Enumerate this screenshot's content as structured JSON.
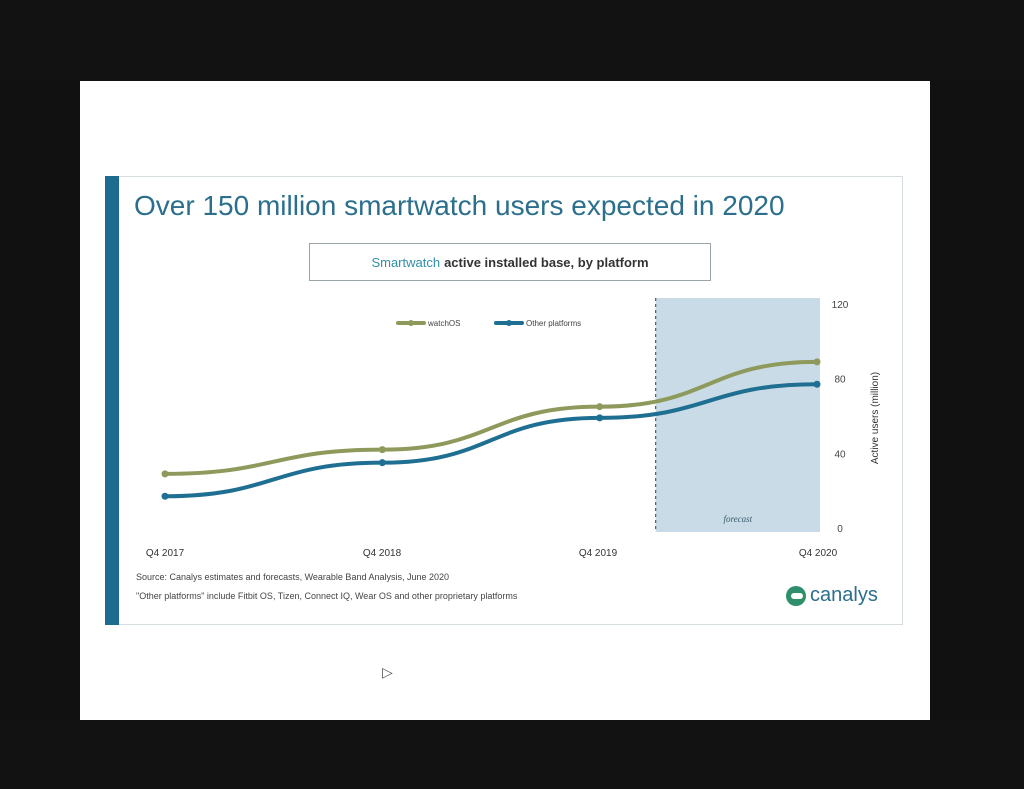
{
  "slide": {
    "title": "Over 150 million smartwatch users expected in 2020",
    "subtitle_accent": "Smartwatch",
    "subtitle_rest": "active installed base, by platform",
    "source_note": "Source: Canalys estimates and forecasts, Wearable Band Analysis, June 2020",
    "other_note": "\"Other platforms\" include Fitbit OS, Tizen, Connect IQ, Wear OS and other proprietary platforms",
    "logo_text": "canalys"
  },
  "chart_data": {
    "type": "line",
    "title": "Smartwatch active installed base, by platform",
    "categories": [
      "Q4 2017",
      "Q4 2018",
      "Q4 2019",
      "Q4 2020"
    ],
    "series": [
      {
        "name": "watchOS",
        "color": "#8e9a5c",
        "values": [
          29,
          42,
          65,
          89
        ]
      },
      {
        "name": "Other platforms",
        "color": "#1f6f92",
        "values": [
          17,
          35,
          59,
          77
        ]
      }
    ],
    "ylabel": "Active users (million)",
    "ylim": [
      0,
      120
    ],
    "yticks": [
      "0",
      "40",
      "80",
      "120"
    ],
    "forecast_label": "forecast",
    "forecast_range": [
      "Q4 2019",
      "Q4 2020"
    ],
    "legend_position": "top-center"
  },
  "ui": {
    "cursor_icon": "pointer-cursor-icon"
  }
}
